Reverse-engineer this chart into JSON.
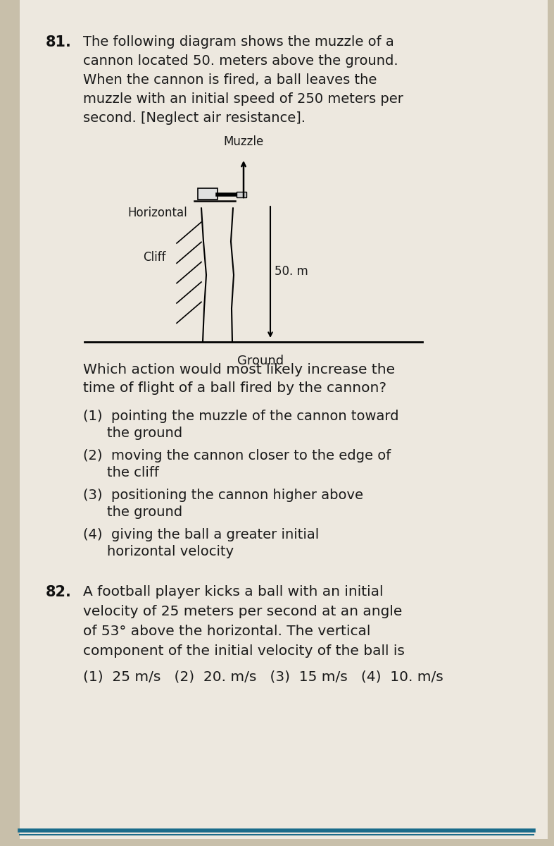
{
  "bg_color": "#c8bfaa",
  "page_bg": "#ede8df",
  "title_num_81": "81.",
  "q81_text_lines": [
    "The following diagram shows the muzzle of a",
    "cannon located 50. meters above the ground.",
    "When the cannon is fired, a ball leaves the",
    "muzzle with an initial speed of 250 meters per",
    "second. [Neglect air resistance]."
  ],
  "q81_sub_question": "Which action would most likely increase the\ntime of flight of a ball fired by the cannon?",
  "q81_choices": [
    [
      "(1)",
      "pointing the muzzle of the cannon toward",
      "the ground"
    ],
    [
      "(2)",
      "moving the cannon closer to the edge of",
      "the cliff"
    ],
    [
      "(3)",
      "positioning the cannon higher above",
      "the ground"
    ],
    [
      "(4)",
      "giving the ball a greater initial",
      "horizontal velocity"
    ]
  ],
  "title_num_82": "82.",
  "q82_text_lines": [
    "A football player kicks a ball with an initial",
    "velocity of 25 meters per second at an angle",
    "of 53° above the horizontal. The vertical",
    "component of the initial velocity of the ball is"
  ],
  "q82_choices_inline": "(1)  25 m/s   (2)  20. m/s   (3)  15 m/s   (4)  10. m/s",
  "diagram": {
    "muzzle_label": "Muzzle",
    "horizontal_label": "Horizontal",
    "cliff_label": "Cliff",
    "height_label": "50. m",
    "ground_label": "Ground"
  },
  "text_color": "#1a1a1a",
  "bold_color": "#111111",
  "bottom_line_color": "#1a6b8a"
}
